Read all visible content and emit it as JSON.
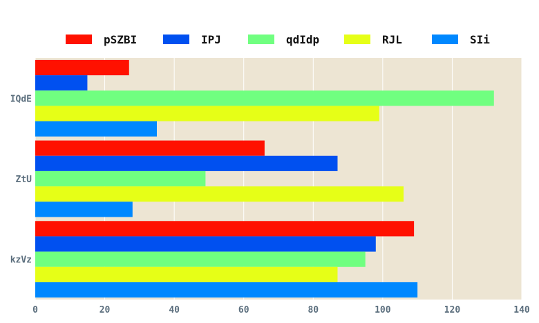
{
  "colors": {
    "plot_background": "#ede5d3",
    "grid": "#ffffff",
    "tick_text": "#5c6f7e"
  },
  "chart_data": {
    "type": "bar",
    "orientation": "horizontal",
    "categories": [
      "IQdE",
      "ZtU",
      "kzVz"
    ],
    "series": [
      {
        "name": "pSZBI",
        "color": "#ff1100",
        "values": [
          27,
          66,
          109
        ]
      },
      {
        "name": "IPJ",
        "color": "#0050f0",
        "values": [
          15,
          87,
          98
        ]
      },
      {
        "name": "qdIdp",
        "color": "#70ff80",
        "values": [
          132,
          49,
          95
        ]
      },
      {
        "name": "RJL",
        "color": "#e6ff17",
        "values": [
          99,
          106,
          87
        ]
      },
      {
        "name": "SIi",
        "color": "#0088ff",
        "values": [
          35,
          28,
          110
        ]
      }
    ],
    "xlim": [
      0,
      140
    ],
    "xticks": [
      0,
      20,
      40,
      60,
      80,
      100,
      120,
      140
    ],
    "grid": true,
    "legend_position": "top"
  }
}
